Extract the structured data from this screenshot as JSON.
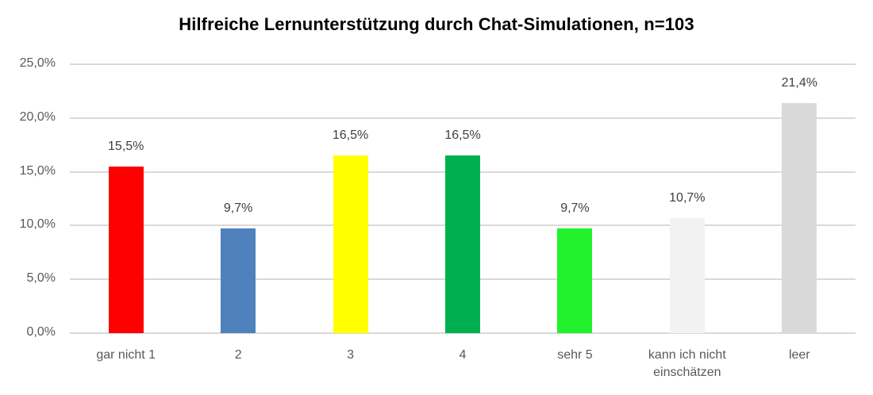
{
  "chart_data": {
    "type": "bar",
    "title": "Hilfreiche Lernunterstützung durch Chat-Simulationen, n=103",
    "xlabel": "",
    "ylabel": "",
    "ylim": [
      0,
      25
    ],
    "grid": true,
    "legend": null,
    "yticks": [
      "0,0%",
      "5,0%",
      "10,0%",
      "15,0%",
      "20,0%",
      "25,0%"
    ],
    "categories": [
      "gar nicht 1",
      "2",
      "3",
      "4",
      "sehr 5",
      "kann ich nicht einschätzen",
      "leer"
    ],
    "category_lines": [
      [
        "gar nicht 1"
      ],
      [
        "2"
      ],
      [
        "3"
      ],
      [
        "4"
      ],
      [
        "sehr 5"
      ],
      [
        "kann ich nicht",
        "einschätzen"
      ],
      [
        "leer"
      ]
    ],
    "values": [
      15.5,
      9.7,
      16.5,
      16.5,
      9.7,
      10.7,
      21.4
    ],
    "data_labels": [
      "15,5%",
      "9,7%",
      "16,5%",
      "16,5%",
      "9,7%",
      "10,7%",
      "21,4%"
    ],
    "colors": [
      "#ff0000",
      "#4f81bd",
      "#ffff00",
      "#00b050",
      "#22f22b",
      "#f2f2f2",
      "#d9d9d9"
    ]
  }
}
